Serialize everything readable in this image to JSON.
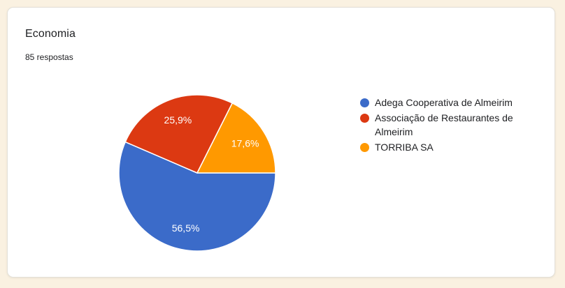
{
  "page": {
    "background_color": "#FAF1E1",
    "card_background": "#FFFFFF"
  },
  "card": {
    "title": "Economia",
    "responses_label": "85 respostas"
  },
  "chart_data": {
    "type": "pie",
    "title": "Economia",
    "responses_total": 85,
    "legend_position": "right",
    "start_angle_deg_from_east": 0,
    "direction": "clockwise",
    "slices": [
      {
        "key": "adega-cooperativa-de-almeirim",
        "label": "Adega Cooperativa de Almeirim",
        "value_pct": 56.5,
        "value_label": "56,5%",
        "color": "#3B6BC9"
      },
      {
        "key": "associacao-de-restaurantes-de-almeirim",
        "label": "Associação de Restaurantes de Almeirim",
        "value_pct": 25.9,
        "value_label": "25,9%",
        "color": "#DC3912"
      },
      {
        "key": "torriba-sa",
        "label": "TORRIBA SA",
        "value_pct": 17.6,
        "value_label": "17,6%",
        "color": "#FF9900"
      }
    ]
  }
}
